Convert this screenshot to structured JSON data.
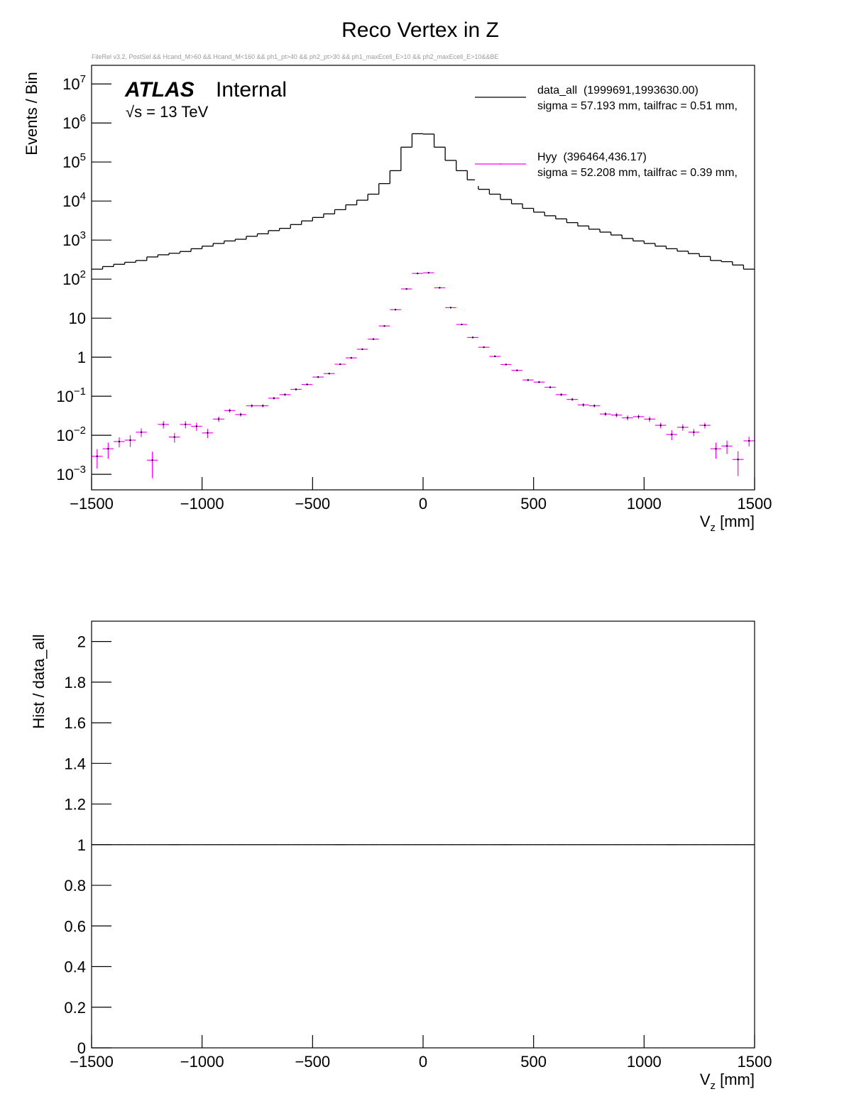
{
  "chart_data": [
    {
      "type": "histogram",
      "title": "Reco Vertex in Z",
      "subtitle": "FileRel v3.2, PostSel && Hcand_M>60 && Hcand_M<160 && ph1_pt>40 && ph2_pt>30 && ph1_maxEcell_E>10 && ph2_maxEcell_E>10&&BE",
      "annotations": {
        "experiment": "ATLAS",
        "status": "Internal",
        "energy": "√s = 13 TeV"
      },
      "xlabel": {
        "text": "V",
        "subscript": "z",
        "unit": " [mm]"
      },
      "ylabel": "Events / Bin",
      "bins": [
        -1500,
        -1450,
        -1400,
        -1350,
        -1300,
        -1250,
        -1200,
        -1150,
        -1100,
        -1050,
        -1000,
        -950,
        -900,
        -850,
        -800,
        -750,
        -700,
        -650,
        -600,
        -550,
        -500,
        -450,
        -400,
        -350,
        -300,
        -250,
        -200,
        -150,
        -100,
        -50,
        0,
        50,
        100,
        150,
        200,
        250,
        300,
        350,
        400,
        450,
        500,
        550,
        600,
        650,
        700,
        750,
        800,
        850,
        900,
        950,
        1000,
        1050,
        1100,
        1150,
        1200,
        1250,
        1300,
        1350,
        1400,
        1450,
        1500
      ],
      "series": [
        {
          "name": "data_all  (1999691,1993630.00)",
          "detail": "sigma = 57.193 mm, tailfrac = 0.51 mm,",
          "color": "#000000",
          "style": "step",
          "values": [
            180,
            210,
            240,
            270,
            300,
            370,
            420,
            460,
            510,
            600,
            700,
            820,
            950,
            1050,
            1250,
            1450,
            1750,
            2000,
            2500,
            3100,
            3800,
            4700,
            6000,
            8000,
            10500,
            15000,
            28000,
            60000,
            240000,
            530000,
            520000,
            240000,
            110000,
            60000,
            35000,
            20000,
            15000,
            11000,
            8500,
            6500,
            5200,
            4200,
            3500,
            2800,
            2300,
            1900,
            1600,
            1350,
            1100,
            950,
            820,
            700,
            600,
            520,
            450,
            380,
            300,
            280,
            230,
            180
          ]
        },
        {
          "name": "Hyy  (396464,436.17)",
          "detail": "sigma = 52.208 mm, tailfrac = 0.39 mm,",
          "color": "#ff00ff",
          "style": "points",
          "values": [
            0.0029,
            0.0045,
            0.0069,
            0.0075,
            0.012,
            0.0023,
            0.019,
            0.009,
            0.019,
            0.017,
            0.0115,
            0.026,
            0.043,
            0.034,
            0.057,
            0.057,
            0.089,
            0.11,
            0.15,
            0.2,
            0.31,
            0.38,
            0.66,
            0.96,
            1.6,
            2.9,
            6.3,
            16.5,
            56,
            140,
            145,
            60,
            18.6,
            6.9,
            3.2,
            1.8,
            1.05,
            0.65,
            0.46,
            0.26,
            0.23,
            0.17,
            0.11,
            0.083,
            0.06,
            0.057,
            0.035,
            0.033,
            0.028,
            0.03,
            0.026,
            0.018,
            0.0105,
            0.016,
            0.012,
            0.018,
            0.0045,
            0.0053,
            0.0024,
            0.0072
          ],
          "errors": [
            0.0015,
            0.002,
            0.002,
            0.0025,
            0.003,
            0.0015,
            0.004,
            0.0025,
            0.004,
            0.004,
            0.003,
            0.004,
            0.005,
            0.004,
            0.005,
            0.005,
            0.007,
            0.008,
            0.01,
            0.012,
            0.015,
            0.017,
            0.025,
            0.03,
            0.04,
            0.06,
            0.1,
            0.2,
            0.4,
            0.7,
            0.7,
            0.4,
            0.2,
            0.1,
            0.06,
            0.04,
            0.03,
            0.025,
            0.02,
            0.015,
            0.013,
            0.01,
            0.008,
            0.007,
            0.006,
            0.005,
            0.004,
            0.004,
            0.004,
            0.004,
            0.004,
            0.003,
            0.003,
            0.003,
            0.0025,
            0.003,
            0.002,
            0.002,
            0.0015,
            0.002
          ]
        }
      ],
      "xlim": [
        -1500,
        1500
      ],
      "xticks": [
        {
          "value": -1500,
          "label": "−1500"
        },
        {
          "value": -1000,
          "label": "−1000"
        },
        {
          "value": -500,
          "label": "−500"
        },
        0,
        500,
        1000,
        1500
      ],
      "ylim": [
        0.0004,
        30000000
      ],
      "log_y": true,
      "yticks": [
        {
          "value": 0.001,
          "label": "10",
          "exponent": "−3"
        },
        {
          "value": 0.01,
          "label": "10",
          "exponent": "−2"
        },
        {
          "value": 0.1,
          "label": "10",
          "exponent": "−1"
        },
        1,
        10,
        {
          "value": 100,
          "label": "10",
          "exponent": "2"
        },
        {
          "value": 1000,
          "label": "10",
          "exponent": "3"
        },
        {
          "value": 10000,
          "label": "10",
          "exponent": "4"
        },
        {
          "value": 100000,
          "label": "10",
          "exponent": "5"
        },
        {
          "value": 1000000,
          "label": "10",
          "exponent": "6"
        },
        {
          "value": 10000000,
          "label": "10",
          "exponent": "7"
        }
      ],
      "legend": "top-right"
    },
    {
      "type": "histogram",
      "xlabel": {
        "text": "V",
        "subscript": "z",
        "unit": " [mm]"
      },
      "ylabel": "Hist / data_all",
      "bins": [
        -1500,
        -1450,
        -1400,
        -1350,
        -1300,
        -1250,
        -1200,
        -1150,
        -1100,
        -1050,
        -1000,
        -950,
        -900,
        -850,
        -800,
        -750,
        -700,
        -650,
        -600,
        -550,
        -500,
        -450,
        -400,
        -350,
        -300,
        -250,
        -200,
        -150,
        -100,
        -50,
        0,
        50,
        100,
        150,
        200,
        250,
        300,
        350,
        400,
        450,
        500,
        550,
        600,
        650,
        700,
        750,
        800,
        850,
        900,
        950,
        1000,
        1050,
        1100,
        1150,
        1200,
        1250,
        1300,
        1350,
        1400,
        1450,
        1500
      ],
      "series": [
        {
          "color": "#000000",
          "style": "step",
          "values": [
            1,
            1,
            1,
            1,
            1,
            1,
            1,
            1,
            1,
            1,
            1,
            1,
            1,
            1,
            1,
            1,
            1,
            1,
            1,
            1,
            1,
            1,
            1,
            1,
            1,
            1,
            1,
            1,
            1,
            1,
            1,
            1,
            1,
            1,
            1,
            1,
            1,
            1,
            1,
            1,
            1,
            1,
            1,
            1,
            1,
            1,
            1,
            1,
            1,
            1,
            1,
            1,
            1,
            1,
            1,
            1,
            1,
            1,
            1,
            1
          ]
        }
      ],
      "xlim": [
        -1500,
        1500
      ],
      "xticks": [
        {
          "value": -1500,
          "label": "−1500"
        },
        {
          "value": -1000,
          "label": "−1000"
        },
        {
          "value": -500,
          "label": "−500"
        },
        0,
        500,
        1000,
        1500
      ],
      "ylim": [
        0,
        2.1
      ],
      "log_y": false,
      "yticks": [
        0,
        0.2,
        0.4,
        0.6,
        0.8,
        1,
        1.2,
        1.4,
        1.6,
        1.8,
        2
      ]
    }
  ]
}
